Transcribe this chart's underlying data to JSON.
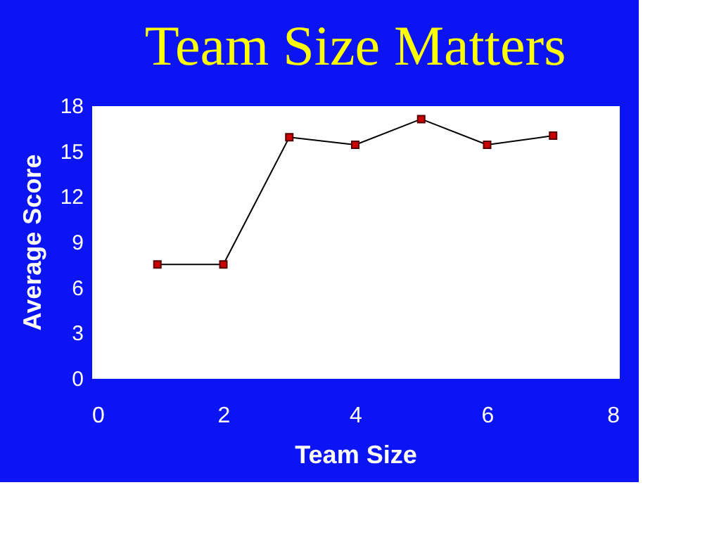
{
  "chart_data": {
    "type": "line",
    "title": "Team Size Matters",
    "xlabel": "Team Size",
    "ylabel": "Average Score",
    "x": [
      1,
      2,
      3,
      4,
      5,
      6,
      7
    ],
    "series": [
      {
        "color": "#000000",
        "values": [
          7.5,
          7.5,
          15.9,
          15.4,
          17.1,
          15.4,
          16.0
        ]
      }
    ],
    "xlim": [
      0,
      8
    ],
    "xticks": [
      0,
      2,
      4,
      6,
      8
    ],
    "ylim": [
      0,
      18
    ],
    "yticks": [
      0,
      3,
      6,
      9,
      12,
      15,
      18
    ],
    "grid": false,
    "marker": "square",
    "line_style": "solid"
  }
}
